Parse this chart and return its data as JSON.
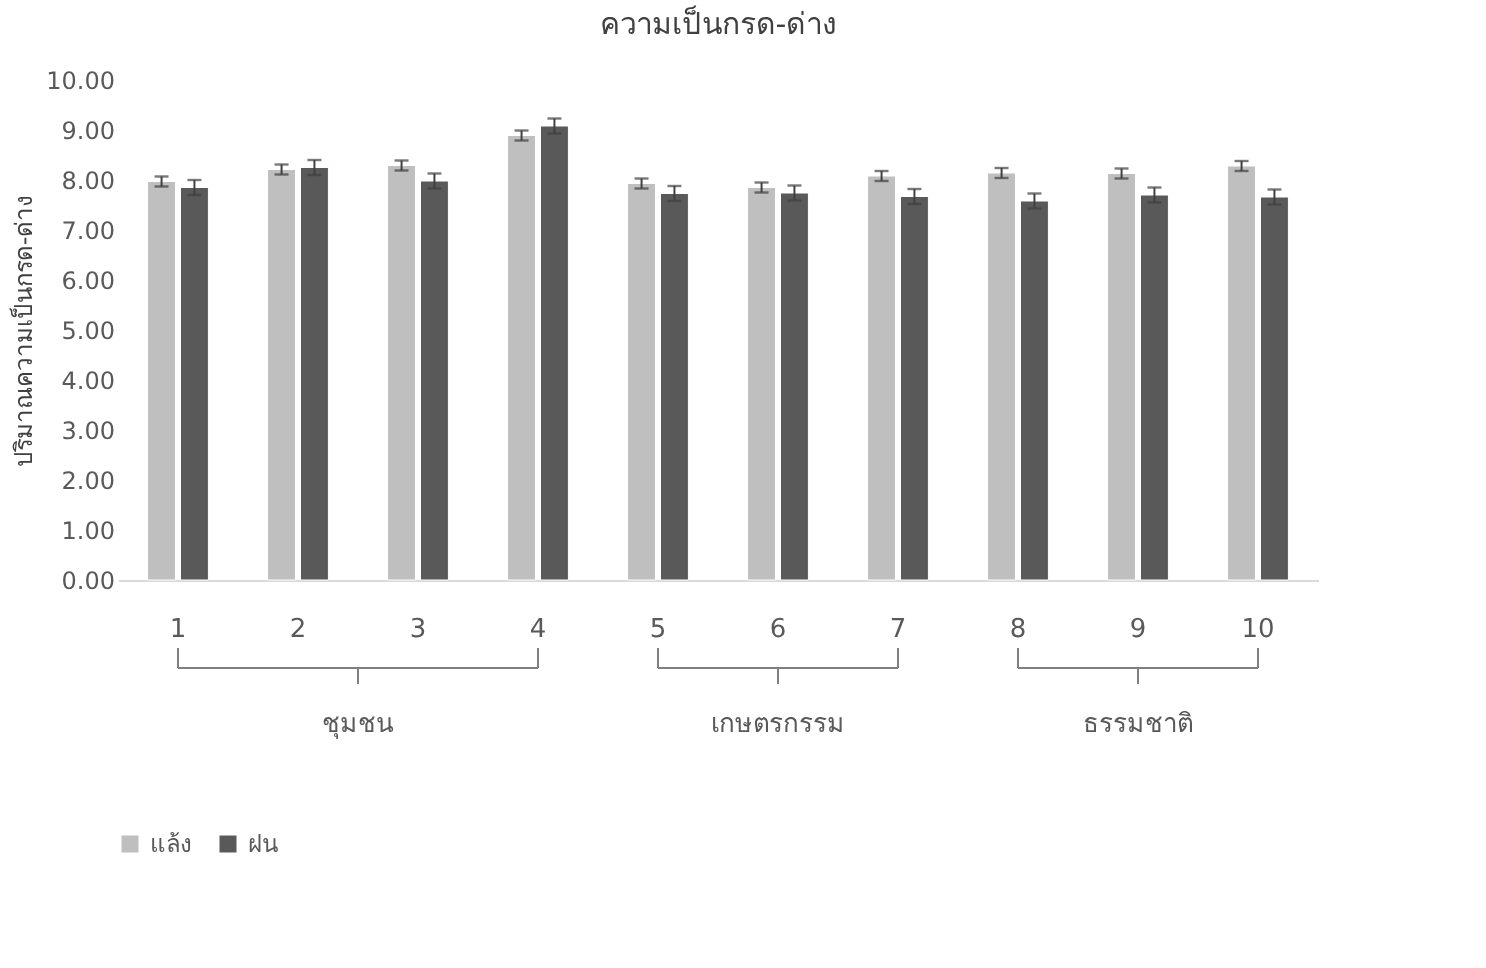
{
  "chart_data": {
    "type": "bar",
    "title": "ความเป็นกรด-ด่าง",
    "ylabel": "ปริมาณความเป็นกรด-ด่าง",
    "categories": [
      "1",
      "2",
      "3",
      "4",
      "5",
      "6",
      "7",
      "8",
      "9",
      "10"
    ],
    "series": [
      {
        "name": "แล้ง",
        "color": "#bfbfbf",
        "values": [
          7.97,
          8.21,
          8.29,
          8.89,
          7.93,
          7.85,
          8.08,
          8.14,
          8.13,
          8.28
        ],
        "errors": [
          0.1,
          0.1,
          0.1,
          0.1,
          0.1,
          0.1,
          0.1,
          0.1,
          0.1,
          0.1
        ]
      },
      {
        "name": "ฝน",
        "color": "#595959",
        "values": [
          7.85,
          8.25,
          7.98,
          9.08,
          7.73,
          7.74,
          7.67,
          7.58,
          7.7,
          7.66
        ],
        "errors": [
          0.15,
          0.15,
          0.15,
          0.15,
          0.15,
          0.15,
          0.15,
          0.15,
          0.15,
          0.15
        ]
      }
    ],
    "ylim": [
      0,
      10
    ],
    "yticks": [
      {
        "value": 0,
        "label": "0.00"
      },
      {
        "value": 1,
        "label": "1.00"
      },
      {
        "value": 2,
        "label": "2.00"
      },
      {
        "value": 3,
        "label": "3.00"
      },
      {
        "value": 4,
        "label": "4.00"
      },
      {
        "value": 5,
        "label": "5.00"
      },
      {
        "value": 6,
        "label": "6.00"
      },
      {
        "value": 7,
        "label": "7.00"
      },
      {
        "value": 8,
        "label": "8.00"
      },
      {
        "value": 9,
        "label": "9.00"
      },
      {
        "value": 10,
        "label": "10.00"
      }
    ],
    "annotations": [
      "ชุมชน",
      "เกษตรกรรม",
      "ธรรมชาติ"
    ],
    "grid": false,
    "legend": "bottom"
  }
}
